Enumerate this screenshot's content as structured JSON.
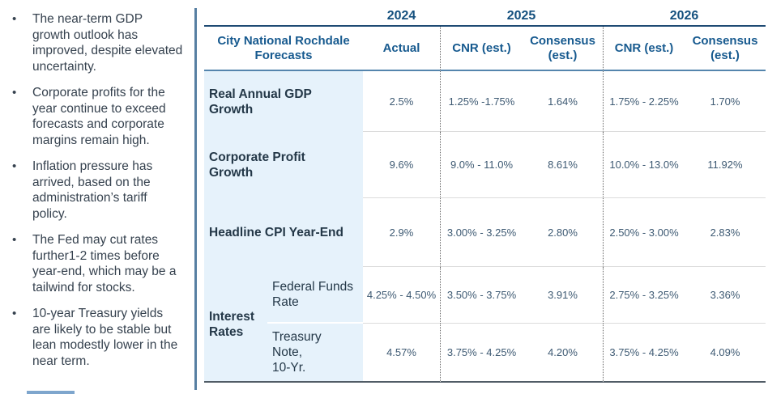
{
  "bullets": [
    "The near-term GDP growth outlook has improved, despite elevated uncertainty.",
    "Corporate profits for the year continue to exceed forecasts and corporate margins remain high.",
    "Inflation pressure has arrived, based on the administration’s tariff policy.",
    "The Fed may cut rates further1-2 times before year-end, which may be a tailwind for stocks.",
    "10-year Treasury yields are likely to be stable but lean modestly lower in the near term."
  ],
  "table": {
    "title": "City National Rochdale\nForecasts",
    "year_groups": [
      {
        "year": "2024",
        "columns": [
          "Actual"
        ]
      },
      {
        "year": "2025",
        "columns": [
          "CNR  (est.)",
          "Consensus\n(est.)"
        ]
      },
      {
        "year": "2026",
        "columns": [
          "CNR  (est.)",
          "Consensus\n(est.)"
        ]
      }
    ],
    "rows": [
      {
        "label": "Real Annual GDP\nGrowth",
        "values": [
          "2.5%",
          "1.25% -1.75%",
          "1.64%",
          "1.75% - 2.25%",
          "1.70%"
        ]
      },
      {
        "label": "Corporate Profit\nGrowth",
        "values": [
          "9.6%",
          "9.0% - 11.0%",
          "8.61%",
          "10.0% - 13.0%",
          "11.92%"
        ]
      },
      {
        "label": "Headline CPI Year-End",
        "values": [
          "2.9%",
          "3.00% - 3.25%",
          "2.80%",
          "2.50% - 3.00%",
          "2.83%"
        ]
      },
      {
        "group": "Interest\nRates",
        "label": "Federal Funds\nRate",
        "values": [
          "4.25% - 4.50%",
          "3.50% - 3.75%",
          "3.91%",
          "2.75% - 3.25%",
          "3.36%"
        ]
      },
      {
        "group": "Interest\nRates",
        "label": "Treasury\nNote,\n10-Yr.",
        "values": [
          "4.57%",
          "3.75% - 4.25%",
          "4.20%",
          "3.75% - 4.25%",
          "4.09%"
        ]
      }
    ]
  },
  "colors": {
    "header_blue": "#175A8F",
    "year_blue": "#14507E",
    "label_dark": "#243848",
    "value_text": "#3E5A73",
    "bullet_text": "#36424F",
    "light_blue_bg": "#E6F2FB",
    "divider_blue": "#577FA2",
    "navy_line": "#1E4A73",
    "header_underline": "#5585AD",
    "bottom_border": "#515C66",
    "row_separator": "#DBDBDB",
    "dotted_line": "#666666",
    "footer_accent": "#7EA6CD"
  }
}
